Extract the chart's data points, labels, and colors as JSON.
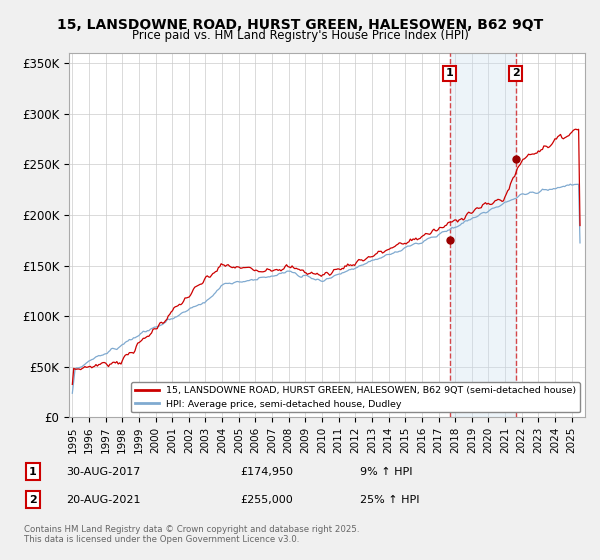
{
  "title1": "15, LANSDOWNE ROAD, HURST GREEN, HALESOWEN, B62 9QT",
  "title2": "Price paid vs. HM Land Registry's House Price Index (HPI)",
  "ylabel_ticks": [
    "£0",
    "£50K",
    "£100K",
    "£150K",
    "£200K",
    "£250K",
    "£300K",
    "£350K"
  ],
  "ytick_values": [
    0,
    50000,
    100000,
    150000,
    200000,
    250000,
    300000,
    350000
  ],
  "ylim": [
    0,
    360000
  ],
  "xlim_start": 1994.8,
  "xlim_end": 2025.8,
  "sale1_year": 2017.66,
  "sale1_price": 174950,
  "sale2_year": 2021.63,
  "sale2_price": 255000,
  "red_line_color": "#cc0000",
  "blue_line_color": "#80aad0",
  "sale_dot_color": "#990000",
  "vline_color": "#cc0000",
  "vspan_color": "#cce0f0",
  "legend_line1": "15, LANSDOWNE ROAD, HURST GREEN, HALESOWEN, B62 9QT (semi-detached house)",
  "legend_line2": "HPI: Average price, semi-detached house, Dudley",
  "annotation1_date": "30-AUG-2017",
  "annotation1_price": "£174,950",
  "annotation1_hpi": "9% ↑ HPI",
  "annotation2_date": "20-AUG-2021",
  "annotation2_price": "£255,000",
  "annotation2_hpi": "25% ↑ HPI",
  "footer": "Contains HM Land Registry data © Crown copyright and database right 2025.\nThis data is licensed under the Open Government Licence v3.0.",
  "background_color": "#f0f0f0",
  "plot_bg_color": "#ffffff"
}
